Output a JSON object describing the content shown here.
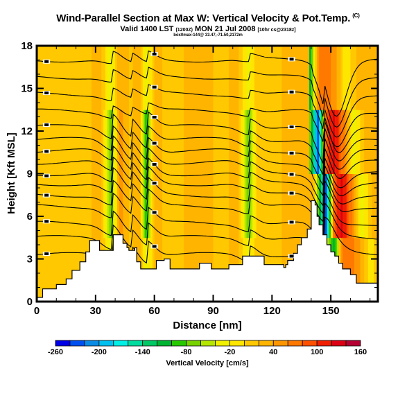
{
  "titles": {
    "main": "Wind-Parallel Section at Max W: Vertical Velocity & Pot.Temp.",
    "copyright": "(C)",
    "valid": "Valid 1400 LST",
    "valid_utc": "(1200Z)",
    "valid_date": "MON 21 Jul 2008",
    "forecast": "[10hr cs@2318z]",
    "location": "box0max-144@ 33.47,-71.50,2172m"
  },
  "chart_data": {
    "type": "heatmap",
    "title": "Wind-Parallel Section at Max W: Vertical Velocity & Pot.Temp.",
    "xlabel": "Distance [nm]",
    "ylabel": "Height [Kft MSL]",
    "xlim": [
      0,
      174
    ],
    "ylim": [
      0,
      18
    ],
    "xticks": [
      "0",
      "30",
      "60",
      "90",
      "120",
      "150"
    ],
    "xtick_values": [
      0,
      30,
      60,
      90,
      120,
      150
    ],
    "yticks": [
      "0",
      "3",
      "6",
      "9",
      "12",
      "15",
      "18"
    ],
    "ytick_values": [
      0,
      3,
      6,
      9,
      12,
      15,
      18
    ],
    "colorbar": {
      "label": "Vertical Velocity [cm/s]",
      "min": -260,
      "max": 160,
      "step": 20,
      "tick_labels": [
        "-260",
        "-200",
        "-140",
        "-80",
        "-20",
        "40",
        "100",
        "160"
      ],
      "colors": [
        "#0000e6",
        "#0050f0",
        "#0a8ce6",
        "#00c0f0",
        "#00f0e6",
        "#00dca0",
        "#00c864",
        "#00b432",
        "#28c800",
        "#78d200",
        "#b4e600",
        "#f0f000",
        "#ffe600",
        "#ffc800",
        "#ffb400",
        "#ff9600",
        "#ff7800",
        "#ff5000",
        "#f01e00",
        "#dc0014",
        "#b40032"
      ]
    },
    "fill_field": "vertical velocity (cm/s)",
    "contour_field": "potential temperature",
    "velocity_columns": [
      {
        "x": 0,
        "w": 10
      },
      {
        "x": 8,
        "w": 20
      },
      {
        "x": 15,
        "w": 5
      },
      {
        "x": 25,
        "w": 15
      },
      {
        "x": 33,
        "w": 30
      },
      {
        "x": 38,
        "w": -90
      },
      {
        "x": 42,
        "w": 50
      },
      {
        "x": 48,
        "w": 10
      },
      {
        "x": 52,
        "w": 40
      },
      {
        "x": 56,
        "w": -100
      },
      {
        "x": 60,
        "w": 30
      },
      {
        "x": 66,
        "w": 15
      },
      {
        "x": 75,
        "w": 20
      },
      {
        "x": 85,
        "w": 30
      },
      {
        "x": 95,
        "w": 10
      },
      {
        "x": 102,
        "w": 35
      },
      {
        "x": 108,
        "w": -80
      },
      {
        "x": 113,
        "w": 20
      },
      {
        "x": 120,
        "w": 10
      },
      {
        "x": 128,
        "w": 25
      },
      {
        "x": 135,
        "w": 30
      },
      {
        "x": 140,
        "w": 40
      },
      {
        "x": 144,
        "w": -120
      },
      {
        "x": 147,
        "w": -230
      },
      {
        "x": 151,
        "w": 90
      },
      {
        "x": 155,
        "w": 130
      },
      {
        "x": 160,
        "w": 60
      },
      {
        "x": 165,
        "w": -40
      },
      {
        "x": 170,
        "w": 20
      }
    ],
    "terrain_kft": [
      [
        0,
        0.3
      ],
      [
        3,
        0.3
      ],
      [
        3,
        0.9
      ],
      [
        10,
        0.9
      ],
      [
        10,
        1.2
      ],
      [
        15,
        1.2
      ],
      [
        15,
        1.6
      ],
      [
        18,
        1.6
      ],
      [
        18,
        2.2
      ],
      [
        22,
        2.2
      ],
      [
        22,
        2.8
      ],
      [
        25,
        2.8
      ],
      [
        25,
        3.5
      ],
      [
        27,
        3.5
      ],
      [
        27,
        4.3
      ],
      [
        32,
        4.3
      ],
      [
        32,
        3.6
      ],
      [
        39,
        3.6
      ],
      [
        39,
        4.7
      ],
      [
        44,
        4.7
      ],
      [
        44,
        4.1
      ],
      [
        46,
        4.1
      ],
      [
        46,
        3.8
      ],
      [
        47,
        3.8
      ],
      [
        47,
        3.6
      ],
      [
        50,
        3.6
      ],
      [
        50,
        3.8
      ],
      [
        51,
        3.8
      ],
      [
        51,
        2.8
      ],
      [
        53,
        2.8
      ],
      [
        53,
        2.3
      ],
      [
        61,
        2.3
      ],
      [
        61,
        2.9
      ],
      [
        65,
        2.9
      ],
      [
        65,
        3.0
      ],
      [
        68,
        3.0
      ],
      [
        68,
        2.3
      ],
      [
        83,
        2.3
      ],
      [
        83,
        2.7
      ],
      [
        89,
        2.7
      ],
      [
        89,
        2.3
      ],
      [
        98,
        2.3
      ],
      [
        98,
        2.6
      ],
      [
        105,
        2.6
      ],
      [
        105,
        3.2
      ],
      [
        116,
        3.2
      ],
      [
        116,
        2.6
      ],
      [
        126,
        2.6
      ],
      [
        126,
        2.4
      ],
      [
        127,
        2.4
      ],
      [
        127,
        2.6
      ],
      [
        128,
        2.6
      ],
      [
        128,
        2.9
      ],
      [
        131,
        2.9
      ],
      [
        131,
        3.4
      ],
      [
        133,
        3.4
      ],
      [
        133,
        4.0
      ],
      [
        135,
        4.0
      ],
      [
        135,
        4.5
      ],
      [
        138,
        4.5
      ],
      [
        138,
        5.1
      ],
      [
        140,
        5.1
      ],
      [
        140,
        7.1
      ],
      [
        142,
        7.1
      ],
      [
        142,
        6.8
      ],
      [
        143,
        6.8
      ],
      [
        143,
        6.0
      ],
      [
        144,
        6.0
      ],
      [
        144,
        5.4
      ],
      [
        146,
        5.4
      ],
      [
        146,
        4.7
      ],
      [
        148,
        4.7
      ],
      [
        148,
        4.0
      ],
      [
        150,
        4.0
      ],
      [
        150,
        3.5
      ],
      [
        152,
        3.5
      ],
      [
        152,
        3.2
      ],
      [
        154,
        3.2
      ],
      [
        154,
        2.7
      ],
      [
        156,
        2.7
      ],
      [
        156,
        2.3
      ],
      [
        160,
        2.3
      ],
      [
        160,
        1.9
      ],
      [
        163,
        1.9
      ],
      [
        163,
        1.3
      ],
      [
        166,
        1.3
      ],
      [
        166,
        1.3
      ],
      [
        174,
        1.3
      ],
      [
        174,
        0
      ]
    ],
    "contour_levels_kft_at_x0": [
      3.3,
      4.5,
      5.5,
      6.7,
      7.5,
      8.3,
      9.0,
      9.8,
      10.6,
      11.4,
      12.3,
      13.4,
      14.6,
      15.8,
      17.0
    ],
    "contour_label_count": 27
  }
}
